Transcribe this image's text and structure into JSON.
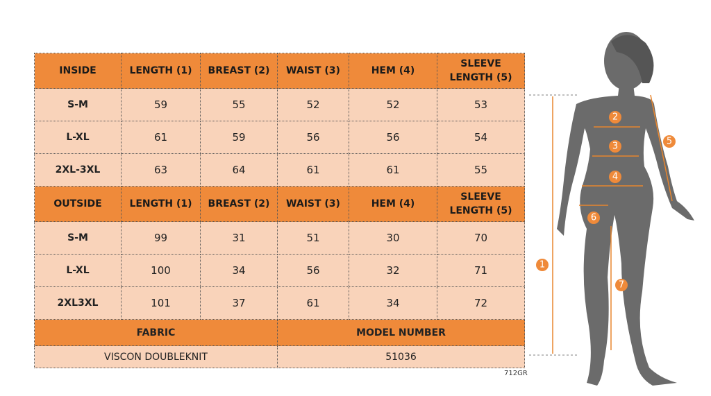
{
  "table": {
    "inside": {
      "header": [
        "INSIDE",
        "LENGTH (1)",
        "BREAST (2)",
        "WAIST (3)",
        "HEM (4)",
        "SLEEVE LENGTH (5)"
      ],
      "rows": [
        [
          "S-M",
          59,
          55,
          52,
          52,
          53
        ],
        [
          "L-XL",
          61,
          59,
          56,
          56,
          54
        ],
        [
          "2XL-3XL",
          63,
          64,
          61,
          61,
          55
        ]
      ]
    },
    "outside": {
      "header": [
        "OUTSIDE",
        "LENGTH (1)",
        "BREAST (2)",
        "WAIST (3)",
        "HEM (4)",
        "SLEEVE LENGTH (5)"
      ],
      "rows": [
        [
          "S-M",
          99,
          31,
          51,
          30,
          70
        ],
        [
          "L-XL",
          100,
          34,
          56,
          32,
          71
        ],
        [
          "2XL3XL",
          101,
          37,
          61,
          34,
          72
        ]
      ]
    },
    "footer": {
      "header": [
        "FABRIC",
        "MODEL NUMBER"
      ],
      "row": [
        "VISCON DOUBLEKNIT",
        "51036"
      ]
    }
  },
  "figure": {
    "markers": [
      "1",
      "2",
      "3",
      "4",
      "5",
      "6",
      "7"
    ],
    "code": "712GR"
  }
}
